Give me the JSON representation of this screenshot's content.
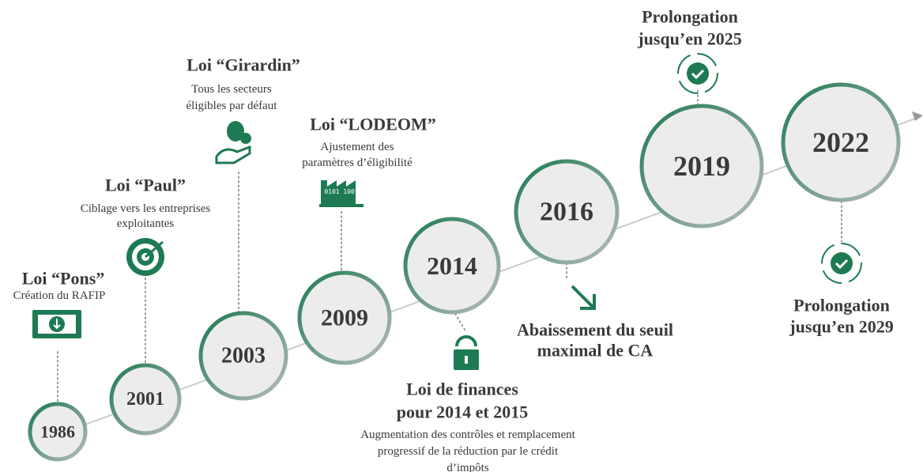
{
  "milestones": [
    {
      "year": "1986",
      "title": [
        "Loi “Pons”"
      ],
      "description": [
        "Création du RAFIP"
      ]
    },
    {
      "year": "2001",
      "title": [
        "Loi “Paul”"
      ],
      "description": [
        "Ciblage vers les entreprises",
        "exploitantes"
      ]
    },
    {
      "year": "2003",
      "title": [
        "Loi “Girardin”"
      ],
      "description": [
        "Tous les secteurs",
        "éligibles par défaut"
      ]
    },
    {
      "year": "2009",
      "title": [
        "Loi “LODEOM”"
      ],
      "description": [
        "Ajustement des",
        "paramètres d’éligibilité"
      ]
    },
    {
      "year": "2014",
      "title": [
        "Loi de finances",
        "pour 2014 et 2015"
      ],
      "description": [
        "Augmentation des contrôles et remplacement",
        "progressif de la réduction par le crédit",
        "d’impôts"
      ]
    },
    {
      "year": "2016",
      "title": [
        "Abaissement du seuil",
        "maximal de CA"
      ],
      "description": []
    },
    {
      "year": "2019",
      "title": [
        "Prolongation",
        "jusqu’en 2025"
      ],
      "description": []
    },
    {
      "year": "2022",
      "title": [
        "Prolongation",
        "jusqu’en 2029"
      ],
      "description": []
    }
  ]
}
